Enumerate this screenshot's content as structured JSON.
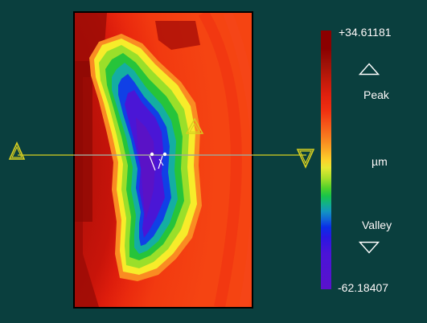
{
  "scale": {
    "max_label": "+34.61181",
    "min_label": "-62.18407",
    "peak_label": "Peak",
    "valley_label": "Valley",
    "unit_label": "µm"
  },
  "icons": {
    "peak_up": "triangle-up-outline-icon",
    "valley_down": "triangle-down-outline-icon",
    "profile_left_handle": "triangle-marker-icon",
    "profile_right_handle": "triangle-marker-icon",
    "profile_mid_marker": "triangle-marker-icon"
  },
  "colors": {
    "background": "#0a3f3e",
    "profile_line": "#d8d020",
    "peak_color": "#8b0000",
    "valley_color": "#5a12cc"
  }
}
